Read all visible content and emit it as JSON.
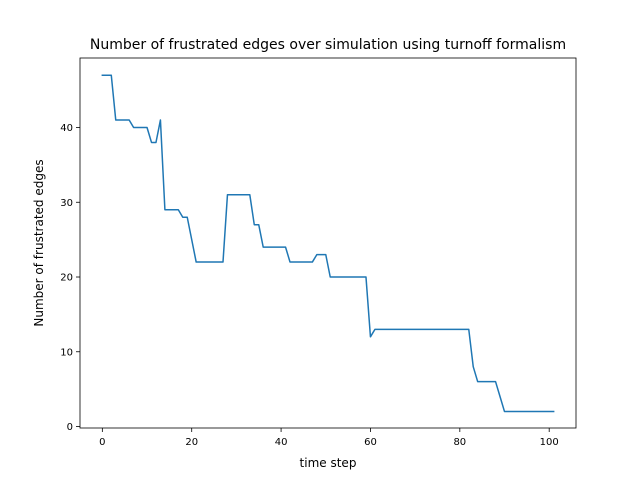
{
  "chart_data": {
    "type": "line",
    "title": "Number of frustrated edges over simulation using turnoff formalism",
    "xlabel": "time step",
    "ylabel": "Number of frustrated edges",
    "xlim": [
      -5,
      106
    ],
    "ylim": [
      -0.2,
      49.3
    ],
    "x_ticks": [
      0,
      20,
      40,
      60,
      80,
      100
    ],
    "y_ticks": [
      0,
      10,
      20,
      30,
      40
    ],
    "grid": false,
    "line_color": "#1f77b4",
    "series": [
      {
        "x": [
          0,
          1,
          2,
          3,
          4,
          5,
          6,
          7,
          8,
          9,
          10,
          11,
          12,
          13,
          14,
          15,
          16,
          17,
          18,
          19,
          20,
          21,
          22,
          23,
          24,
          25,
          26,
          27,
          28,
          29,
          30,
          31,
          32,
          33,
          34,
          35,
          36,
          37,
          38,
          39,
          40,
          41,
          42,
          43,
          44,
          45,
          46,
          47,
          48,
          49,
          50,
          51,
          52,
          53,
          54,
          55,
          56,
          57,
          58,
          59,
          60,
          61,
          62,
          63,
          64,
          65,
          66,
          67,
          68,
          69,
          70,
          71,
          72,
          73,
          74,
          75,
          76,
          77,
          78,
          79,
          80,
          81,
          82,
          83,
          84,
          85,
          86,
          87,
          88,
          89,
          90,
          91,
          92,
          93,
          94,
          95,
          96,
          97,
          98,
          99,
          100,
          101
        ],
        "y": [
          47,
          47,
          47,
          41,
          41,
          41,
          41,
          40,
          40,
          40,
          40,
          38,
          38,
          41,
          29,
          29,
          29,
          29,
          28,
          28,
          25,
          22,
          22,
          22,
          22,
          22,
          22,
          22,
          31,
          31,
          31,
          31,
          31,
          31,
          27,
          27,
          24,
          24,
          24,
          24,
          24,
          24,
          22,
          22,
          22,
          22,
          22,
          22,
          23,
          23,
          23,
          20,
          20,
          20,
          20,
          20,
          20,
          20,
          20,
          20,
          12,
          13,
          13,
          13,
          13,
          13,
          13,
          13,
          13,
          13,
          13,
          13,
          13,
          13,
          13,
          13,
          13,
          13,
          13,
          13,
          13,
          13,
          13,
          8,
          6,
          6,
          6,
          6,
          6,
          4,
          2,
          2,
          2,
          2,
          2,
          2,
          2,
          2,
          2,
          2,
          2,
          2
        ]
      }
    ]
  }
}
